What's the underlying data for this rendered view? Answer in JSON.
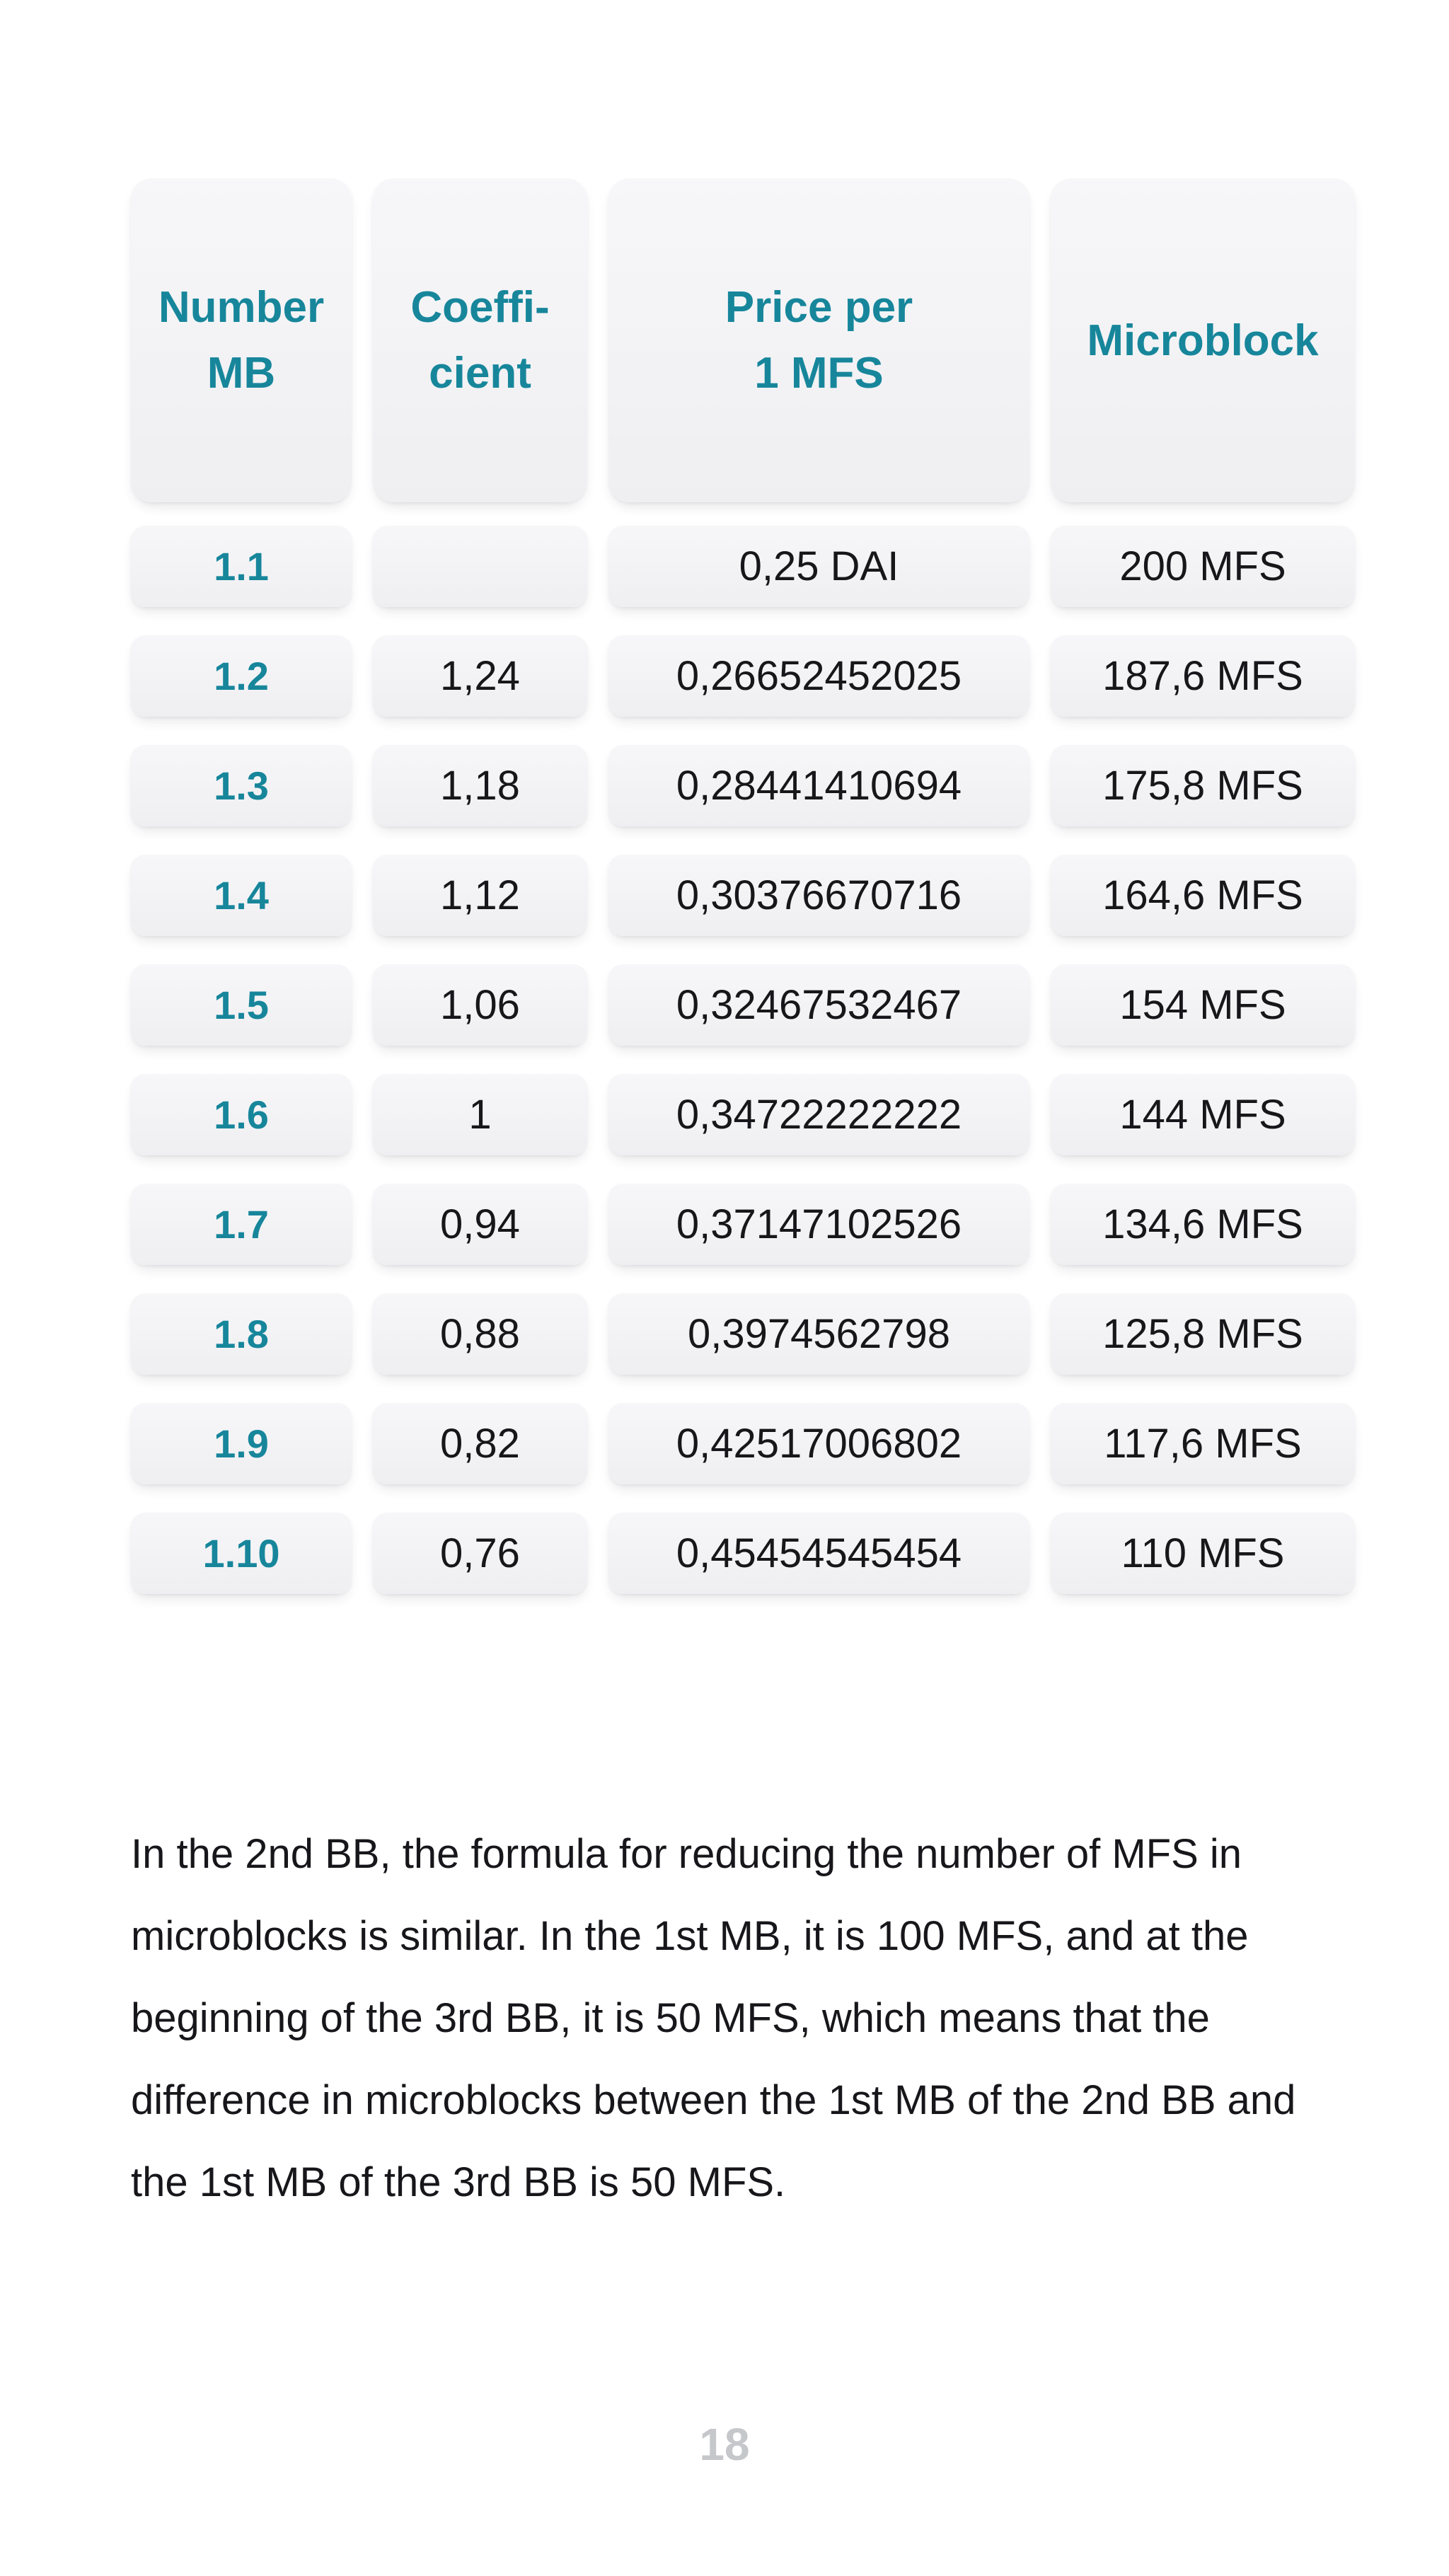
{
  "accent_color": "#17869B",
  "header": {
    "columns": [
      {
        "lines": [
          "Number",
          "MB"
        ]
      },
      {
        "lines": [
          "Coeffi-",
          "cient"
        ]
      },
      {
        "lines": [
          "Price per",
          "1 MFS"
        ]
      },
      {
        "lines": [
          "Microblock"
        ]
      }
    ]
  },
  "table": {
    "rows": [
      {
        "number_mb": "1.1",
        "coefficient": "",
        "price_per_1mfs": "0,25 DAI",
        "microblock": "200 MFS"
      },
      {
        "number_mb": "1.2",
        "coefficient": "1,24",
        "price_per_1mfs": "0,26652452025",
        "microblock": "187,6 MFS"
      },
      {
        "number_mb": "1.3",
        "coefficient": "1,18",
        "price_per_1mfs": "0,28441410694",
        "microblock": "175,8 MFS"
      },
      {
        "number_mb": "1.4",
        "coefficient": "1,12",
        "price_per_1mfs": "0,30376670716",
        "microblock": "164,6 MFS"
      },
      {
        "number_mb": "1.5",
        "coefficient": "1,06",
        "price_per_1mfs": "0,32467532467",
        "microblock": "154 MFS"
      },
      {
        "number_mb": "1.6",
        "coefficient": "1",
        "price_per_1mfs": "0,34722222222",
        "microblock": "144 MFS"
      },
      {
        "number_mb": "1.7",
        "coefficient": "0,94",
        "price_per_1mfs": "0,37147102526",
        "microblock": "134,6 MFS"
      },
      {
        "number_mb": "1.8",
        "coefficient": "0,88",
        "price_per_1mfs": "0,3974562798",
        "microblock": "125,8 MFS"
      },
      {
        "number_mb": "1.9",
        "coefficient": "0,82",
        "price_per_1mfs": "0,42517006802",
        "microblock": "117,6 MFS"
      },
      {
        "number_mb": "1.10",
        "coefficient": "0,76",
        "price_per_1mfs": "0,45454545454",
        "microblock": "110 MFS"
      }
    ]
  },
  "paragraph": "In the 2nd BB, the formula for reducing the number of MFS in microblocks is similar. In the 1st MB, it is 100 MFS, and at the beginning of the 3rd BB, it is 50 MFS, which means that the difference in microblocks between the 1st MB of the 2nd BB and the 1st MB of the 3rd BB is 50 MFS.",
  "footer": {
    "page_number": "18"
  }
}
